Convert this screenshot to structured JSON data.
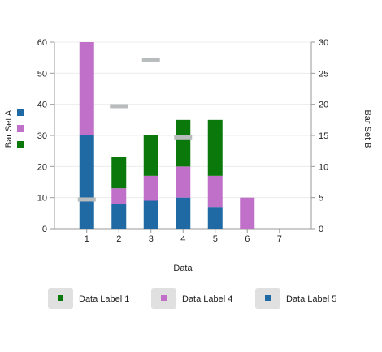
{
  "chart_data": {
    "type": "bar",
    "stacked": true,
    "categories": [
      "1",
      "2",
      "3",
      "4",
      "5",
      "6",
      "7"
    ],
    "xlabel": "Data",
    "ylabel_left": "Bar Set A",
    "ylabel_right": "Bar Set B",
    "ylim_left": [
      0,
      60
    ],
    "ylim_right": [
      0,
      30
    ],
    "yticks_left": [
      0,
      10,
      20,
      30,
      40,
      50,
      60
    ],
    "yticks_right": [
      0,
      5,
      10,
      15,
      20,
      25,
      30
    ],
    "grid": true,
    "legend_position": "bottom",
    "series": [
      {
        "name": "Data Label 5",
        "color": "#1f6aa5",
        "axis": "left",
        "values": [
          30,
          8,
          9,
          10,
          7,
          0,
          0
        ]
      },
      {
        "name": "Data Label 4",
        "color": "#c070c8",
        "axis": "left",
        "values": [
          30,
          5,
          8,
          10,
          10,
          10,
          0
        ]
      },
      {
        "name": "Data Label 1",
        "color": "#0a780a",
        "axis": "left",
        "values": [
          0,
          10,
          13,
          15,
          18,
          0,
          0
        ]
      }
    ],
    "bar_set_b_markers": {
      "axis": "right",
      "color": "#b8bcbc",
      "categories": [
        "1",
        "2",
        "4"
      ],
      "values": [
        4.7,
        19.7,
        14.7
      ]
    },
    "extra_marker": {
      "axis": "right",
      "color": "#b8bcbc",
      "category": "3",
      "value": 27.2
    },
    "legend": [
      {
        "label": "Data Label 1",
        "color": "#0a780a"
      },
      {
        "label": "Data Label 4",
        "color": "#c070c8"
      },
      {
        "label": "Data Label 5",
        "color": "#1f6aa5"
      }
    ],
    "left_legend_colors": [
      "#1f6aa5",
      "#c070c8",
      "#0a780a"
    ]
  }
}
